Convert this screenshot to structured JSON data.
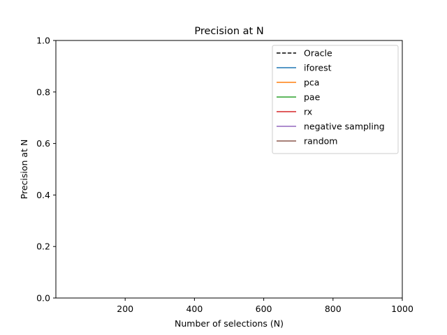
{
  "chart_data": {
    "type": "line",
    "title": "Precision at N",
    "xlabel": "Number of selections (N)",
    "ylabel": "Precision at N",
    "xlim": [
      0,
      1000
    ],
    "ylim": [
      0.0,
      1.0
    ],
    "xticks": [
      "200",
      "400",
      "600",
      "800",
      "1000"
    ],
    "xtick_values": [
      200,
      400,
      600,
      800,
      1000
    ],
    "yticks": [
      "0.0",
      "0.2",
      "0.4",
      "0.6",
      "0.8",
      "1.0"
    ],
    "ytick_values": [
      0.0,
      0.2,
      0.4,
      0.6,
      0.8,
      1.0
    ],
    "grid": false,
    "legend_position": "top-right",
    "series": [
      {
        "name": "Oracle",
        "color": "#000000",
        "style": "dashed",
        "x": [],
        "y": []
      },
      {
        "name": "iforest",
        "color": "#1f77b4",
        "style": "solid",
        "x": [],
        "y": []
      },
      {
        "name": "pca",
        "color": "#ff7f0e",
        "style": "solid",
        "x": [],
        "y": []
      },
      {
        "name": "pae",
        "color": "#2ca02c",
        "style": "solid",
        "x": [],
        "y": []
      },
      {
        "name": "rx",
        "color": "#d62728",
        "style": "solid",
        "x": [],
        "y": []
      },
      {
        "name": "negative sampling",
        "color": "#9467bd",
        "style": "solid",
        "x": [],
        "y": []
      },
      {
        "name": "random",
        "color": "#8c564b",
        "style": "solid",
        "x": [],
        "y": []
      }
    ]
  }
}
